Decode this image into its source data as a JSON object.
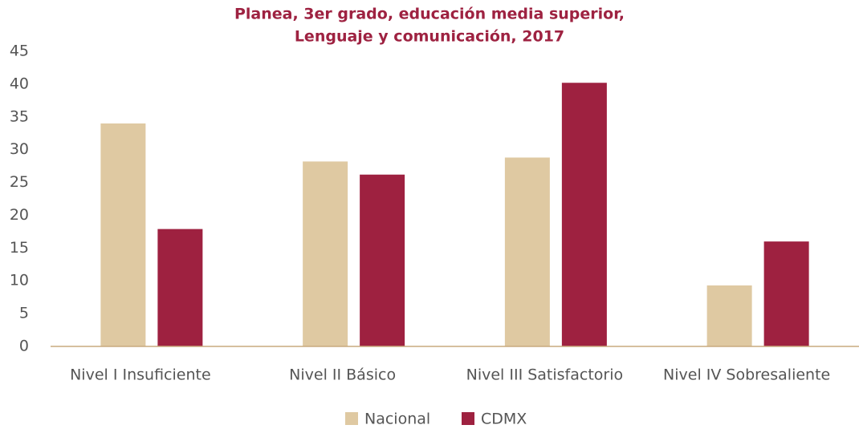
{
  "chart_data": {
    "type": "bar",
    "title": [
      "Planea, 3er grado, educación media superior,",
      "Lenguaje y comunicación, 2017"
    ],
    "categories": [
      "Nivel I Insuficiente",
      "Nivel II Básico",
      "Nivel III Satisfactorio",
      "Nivel IV Sobresaliente"
    ],
    "series": [
      {
        "name": "Nacional",
        "color": "#dfc9a2",
        "values": [
          34,
          28.2,
          28.8,
          9.3
        ]
      },
      {
        "name": "CDMX",
        "color": "#9e2140",
        "values": [
          17.9,
          26.2,
          40.2,
          16
        ]
      }
    ],
    "ylim": [
      0,
      45
    ],
    "yticks": [
      0,
      5,
      10,
      15,
      20,
      25,
      30,
      35,
      40,
      45
    ],
    "grid": false,
    "legend": "bottom"
  }
}
